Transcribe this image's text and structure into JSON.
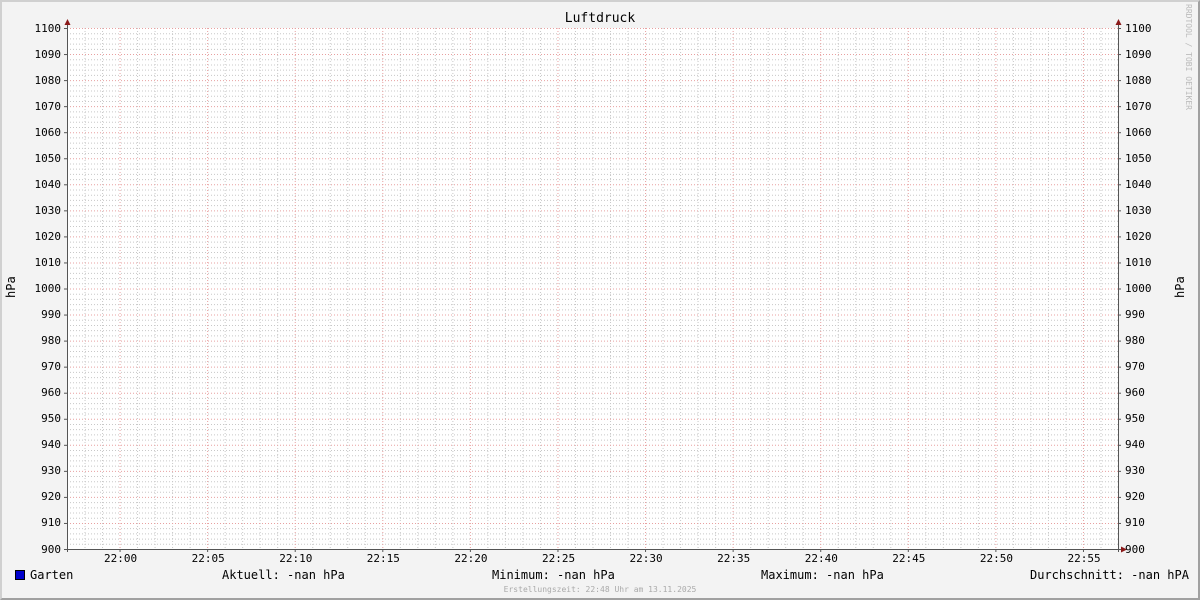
{
  "chart_data": {
    "type": "line",
    "title": "Luftdruck",
    "ylabel": "hPa",
    "ylabel_right": "hPa",
    "ylim": [
      900,
      1100
    ],
    "yticks": [
      900,
      910,
      920,
      930,
      940,
      950,
      960,
      970,
      980,
      990,
      1000,
      1010,
      1020,
      1030,
      1040,
      1050,
      1060,
      1070,
      1080,
      1090,
      1100
    ],
    "xlim": [
      "21:57",
      "22:57"
    ],
    "xticks": [
      "22:00",
      "22:05",
      "22:10",
      "22:15",
      "22:20",
      "22:25",
      "22:30",
      "22:35",
      "22:40",
      "22:45",
      "22:50",
      "22:55"
    ],
    "grid": true,
    "series": [
      {
        "name": "Garten",
        "color": "#0000cc",
        "values": []
      }
    ],
    "colors": {
      "major_grid": "#e8a0a0",
      "minor_grid": "#c8c8c8",
      "axis": "#555555",
      "arrow": "#8b1a1a"
    }
  },
  "legend": {
    "series_name": "Garten",
    "current": "Aktuell: -nan hPa",
    "minimum": "Minimum: -nan hPa",
    "maximum": "Maximum: -nan hPa",
    "average": "Durchschnitt: -nan hPA"
  },
  "footer": "Erstellungszeit: 22:48 Uhr am 13.11.2025",
  "watermark": "RRDTOOL / TOBI OETIKER"
}
